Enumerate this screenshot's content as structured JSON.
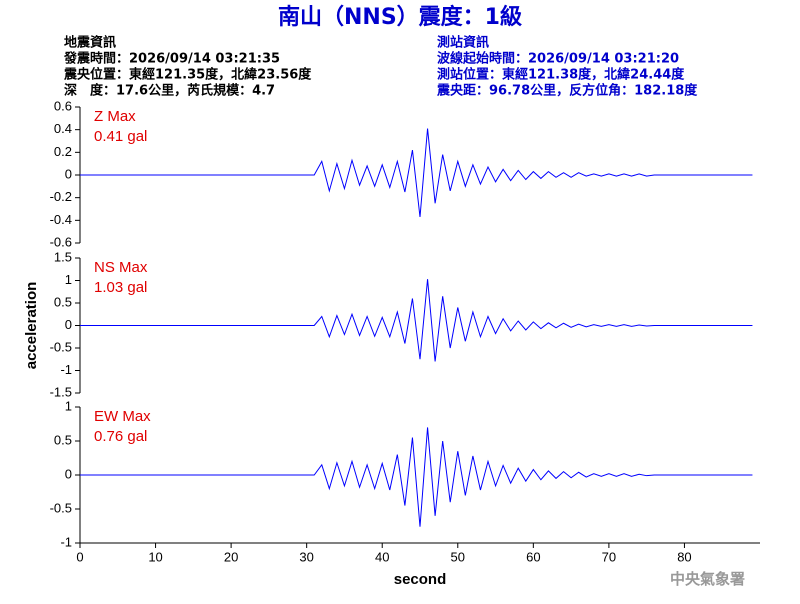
{
  "header": {
    "title": "南山（NNS）震度：1級",
    "event": [
      "地震資訊",
      "發震時間：2026/09/14 03:21:35",
      "震央位置：東經121.35度，北緯23.56度",
      "深　度：17.6公里，芮氏規模：4.7"
    ],
    "station": [
      "測站資訊",
      "波線起始時間：2026/09/14 03:21:20",
      "測站位置：東經121.38度，北緯24.44度",
      "震央距：96.78公里，反方位角：182.18度"
    ],
    "watermark": "中央氣象署"
  },
  "chart_data": [
    {
      "type": "line",
      "label": "Z Max",
      "peak": "0.41 gal",
      "color": "#0000ff",
      "xlim": [
        0,
        90
      ],
      "ylim": [
        -0.6,
        0.6
      ],
      "yticks": [
        -0.6,
        -0.4,
        -0.2,
        0,
        0.2,
        0.4,
        0.6
      ],
      "x": [
        0,
        1,
        2,
        3,
        4,
        5,
        6,
        7,
        8,
        9,
        10,
        11,
        12,
        13,
        14,
        15,
        16,
        17,
        18,
        19,
        20,
        21,
        22,
        23,
        24,
        25,
        26,
        27,
        28,
        29,
        30,
        31,
        32,
        33,
        34,
        35,
        36,
        37,
        38,
        39,
        40,
        41,
        42,
        43,
        44,
        45,
        46,
        47,
        48,
        49,
        50,
        51,
        52,
        53,
        54,
        55,
        56,
        57,
        58,
        59,
        60,
        61,
        62,
        63,
        64,
        65,
        66,
        67,
        68,
        69,
        70,
        71,
        72,
        73,
        74,
        75,
        76,
        77,
        78,
        79,
        80,
        81,
        82,
        83,
        84,
        85,
        86,
        87,
        88,
        89
      ],
      "values": [
        0,
        0,
        0,
        0,
        0,
        0,
        0,
        0,
        0,
        0,
        0,
        0,
        0,
        0,
        0,
        0,
        0,
        0,
        0,
        0,
        0,
        0,
        0,
        0,
        0,
        0,
        0,
        0,
        0,
        0,
        0,
        0,
        0.12,
        -0.14,
        0.1,
        -0.12,
        0.13,
        -0.09,
        0.08,
        -0.1,
        0.09,
        -0.11,
        0.12,
        -0.15,
        0.22,
        -0.37,
        0.41,
        -0.25,
        0.18,
        -0.14,
        0.12,
        -0.1,
        0.09,
        -0.08,
        0.07,
        -0.06,
        0.05,
        -0.05,
        0.04,
        -0.04,
        0.03,
        -0.03,
        0.03,
        -0.02,
        0.02,
        -0.02,
        0.02,
        -0.01,
        0.01,
        -0.01,
        0.01,
        -0.01,
        0.01,
        -0.01,
        0.01,
        -0.01,
        0,
        0,
        0,
        0,
        0,
        0,
        0,
        0,
        0,
        0,
        0,
        0,
        0,
        0
      ]
    },
    {
      "type": "line",
      "label": "NS Max",
      "peak": "1.03 gal",
      "color": "#0000ff",
      "y_label": "acceleration",
      "xlim": [
        0,
        90
      ],
      "ylim": [
        -1.5,
        1.5
      ],
      "yticks": [
        -1.5,
        -1,
        -0.5,
        0,
        0.5,
        1,
        1.5
      ],
      "x": [
        0,
        1,
        2,
        3,
        4,
        5,
        6,
        7,
        8,
        9,
        10,
        11,
        12,
        13,
        14,
        15,
        16,
        17,
        18,
        19,
        20,
        21,
        22,
        23,
        24,
        25,
        26,
        27,
        28,
        29,
        30,
        31,
        32,
        33,
        34,
        35,
        36,
        37,
        38,
        39,
        40,
        41,
        42,
        43,
        44,
        45,
        46,
        47,
        48,
        49,
        50,
        51,
        52,
        53,
        54,
        55,
        56,
        57,
        58,
        59,
        60,
        61,
        62,
        63,
        64,
        65,
        66,
        67,
        68,
        69,
        70,
        71,
        72,
        73,
        74,
        75,
        76,
        77,
        78,
        79,
        80,
        81,
        82,
        83,
        84,
        85,
        86,
        87,
        88,
        89
      ],
      "values": [
        0,
        0,
        0,
        0,
        0,
        0,
        0,
        0,
        0,
        0,
        0,
        0,
        0,
        0,
        0,
        0,
        0,
        0,
        0,
        0,
        0,
        0,
        0,
        0,
        0,
        0,
        0,
        0,
        0,
        0,
        0,
        0,
        0.2,
        -0.25,
        0.22,
        -0.2,
        0.25,
        -0.22,
        0.2,
        -0.24,
        0.18,
        -0.25,
        0.3,
        -0.4,
        0.6,
        -0.75,
        1.03,
        -0.8,
        0.65,
        -0.5,
        0.4,
        -0.35,
        0.3,
        -0.25,
        0.2,
        -0.18,
        0.15,
        -0.12,
        0.1,
        -0.1,
        0.08,
        -0.07,
        0.06,
        -0.05,
        0.05,
        -0.04,
        0.03,
        -0.03,
        0.02,
        -0.02,
        0.02,
        -0.02,
        0.02,
        -0.02,
        0.01,
        -0.01,
        0,
        0,
        0,
        0,
        0,
        0,
        0,
        0,
        0,
        0,
        0,
        0,
        0,
        0
      ]
    },
    {
      "type": "line",
      "label": "EW Max",
      "peak": "0.76 gal",
      "color": "#0000ff",
      "x_label": "second",
      "xlim": [
        0,
        90
      ],
      "xticks": [
        0,
        10,
        20,
        30,
        40,
        50,
        60,
        70,
        80
      ],
      "ylim": [
        -1,
        1
      ],
      "yticks": [
        -1,
        -0.5,
        0,
        0.5,
        1
      ],
      "x": [
        0,
        1,
        2,
        3,
        4,
        5,
        6,
        7,
        8,
        9,
        10,
        11,
        12,
        13,
        14,
        15,
        16,
        17,
        18,
        19,
        20,
        21,
        22,
        23,
        24,
        25,
        26,
        27,
        28,
        29,
        30,
        31,
        32,
        33,
        34,
        35,
        36,
        37,
        38,
        39,
        40,
        41,
        42,
        43,
        44,
        45,
        46,
        47,
        48,
        49,
        50,
        51,
        52,
        53,
        54,
        55,
        56,
        57,
        58,
        59,
        60,
        61,
        62,
        63,
        64,
        65,
        66,
        67,
        68,
        69,
        70,
        71,
        72,
        73,
        74,
        75,
        76,
        77,
        78,
        79,
        80,
        81,
        82,
        83,
        84,
        85,
        86,
        87,
        88,
        89
      ],
      "values": [
        0,
        0,
        0,
        0,
        0,
        0,
        0,
        0,
        0,
        0,
        0,
        0,
        0,
        0,
        0,
        0,
        0,
        0,
        0,
        0,
        0,
        0,
        0,
        0,
        0,
        0,
        0,
        0,
        0,
        0,
        0,
        0,
        0.15,
        -0.2,
        0.18,
        -0.16,
        0.2,
        -0.18,
        0.15,
        -0.2,
        0.17,
        -0.22,
        0.3,
        -0.45,
        0.55,
        -0.76,
        0.7,
        -0.6,
        0.5,
        -0.4,
        0.35,
        -0.3,
        0.28,
        -0.22,
        0.2,
        -0.16,
        0.14,
        -0.12,
        0.1,
        -0.09,
        0.08,
        -0.07,
        0.06,
        -0.05,
        0.05,
        -0.04,
        0.04,
        -0.03,
        0.02,
        -0.02,
        0.02,
        -0.02,
        0.02,
        -0.02,
        0.01,
        -0.01,
        0,
        0,
        0,
        0,
        0,
        0,
        0,
        0,
        0,
        0,
        0,
        0,
        0,
        0
      ]
    }
  ]
}
